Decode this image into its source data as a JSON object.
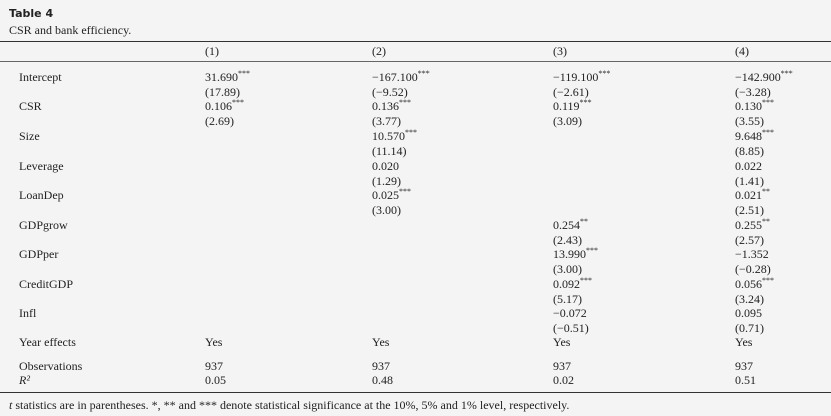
{
  "header": {
    "title": "Table 4",
    "subtitle": "CSR and bank efficiency."
  },
  "table": {
    "columns": [
      "(1)",
      "(2)",
      "(3)",
      "(4)"
    ],
    "rows": [
      {
        "label": "Intercept",
        "cells": [
          {
            "value": "31.690",
            "stars": "***",
            "t": "(17.89)"
          },
          {
            "value": "−167.100",
            "stars": "***",
            "t": "(−9.52)"
          },
          {
            "value": "−119.100",
            "stars": "***",
            "t": "(−2.61)"
          },
          {
            "value": "−142.900",
            "stars": "***",
            "t": "(−3.28)"
          }
        ]
      },
      {
        "label": "CSR",
        "cells": [
          {
            "value": "0.106",
            "stars": "***",
            "t": "(2.69)"
          },
          {
            "value": "0.136",
            "stars": "***",
            "t": "(3.77)"
          },
          {
            "value": "0.119",
            "stars": "***",
            "t": "(3.09)"
          },
          {
            "value": "0.130",
            "stars": "***",
            "t": "(3.55)"
          }
        ]
      },
      {
        "label": "Size",
        "cells": [
          null,
          {
            "value": "10.570",
            "stars": "***",
            "t": "(11.14)"
          },
          null,
          {
            "value": "9.648",
            "stars": "***",
            "t": "(8.85)"
          }
        ]
      },
      {
        "label": "Leverage",
        "cells": [
          null,
          {
            "value": "0.020",
            "t": "(1.29)"
          },
          null,
          {
            "value": "0.022",
            "t": "(1.41)"
          }
        ]
      },
      {
        "label": "LoanDep",
        "cells": [
          null,
          {
            "value": "0.025",
            "stars": "***",
            "t": "(3.00)"
          },
          null,
          {
            "value": "0.021",
            "stars": "**",
            "t": "(2.51)"
          }
        ]
      },
      {
        "label": "GDPgrow",
        "cells": [
          null,
          null,
          {
            "value": "0.254",
            "stars": "**",
            "t": "(2.43)"
          },
          {
            "value": "0.255",
            "stars": "**",
            "t": "(2.57)"
          }
        ]
      },
      {
        "label": "GDPper",
        "cells": [
          null,
          null,
          {
            "value": "13.990",
            "stars": "***",
            "t": "(3.00)"
          },
          {
            "value": "−1.352",
            "t": "(−0.28)"
          }
        ]
      },
      {
        "label": "CreditGDP",
        "cells": [
          null,
          null,
          {
            "value": "0.092",
            "stars": "***",
            "t": "(5.17)"
          },
          {
            "value": "0.056",
            "stars": "***",
            "t": "(3.24)"
          }
        ]
      },
      {
        "label": "Infl",
        "cells": [
          null,
          null,
          {
            "value": "−0.072",
            "t": "(−0.51)"
          },
          {
            "value": "0.095",
            "t": "(0.71)"
          }
        ]
      },
      {
        "label": "Year effects",
        "cells": [
          {
            "value": "Yes"
          },
          {
            "value": "Yes"
          },
          {
            "value": "Yes"
          },
          {
            "value": "Yes"
          }
        ]
      },
      {
        "label": "Observations",
        "cells": [
          {
            "value": "937"
          },
          {
            "value": "937"
          },
          {
            "value": "937"
          },
          {
            "value": "937"
          }
        ]
      },
      {
        "label": "R²",
        "cells": [
          {
            "value": "0.05"
          },
          {
            "value": "0.48"
          },
          {
            "value": "0.02"
          },
          {
            "value": "0.51"
          }
        ]
      }
    ]
  },
  "footnote": {
    "italic": "t",
    "text": " statistics are in parentheses. *, ** and *** denote statistical significance at the 10%, 5% and 1% level, respectively."
  }
}
